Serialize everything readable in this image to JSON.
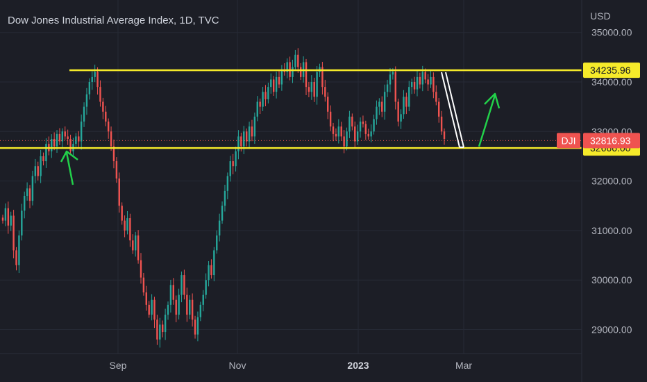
{
  "chart_data": {
    "type": "candlestick",
    "title": "Dow Jones Industrial Average Index, 1D, TVC",
    "currency": "USD",
    "symbol": "DJI",
    "ylim": [
      28300,
      35400
    ],
    "y_ticks": [
      {
        "value": 35000,
        "label": "35000.00"
      },
      {
        "value": 34000,
        "label": "34000.00"
      },
      {
        "value": 33000,
        "label": "33000.00"
      },
      {
        "value": 32000,
        "label": "32000.00"
      },
      {
        "value": 31000,
        "label": "31000.00"
      },
      {
        "value": 30000,
        "label": "30000.00"
      },
      {
        "value": 29000,
        "label": "29000.00"
      }
    ],
    "x_labels": [
      {
        "label": "Sep",
        "bold": false
      },
      {
        "label": "Nov",
        "bold": false
      },
      {
        "label": "2023",
        "bold": true
      },
      {
        "label": "Mar",
        "bold": false
      }
    ],
    "levels": [
      {
        "label": "34235.96",
        "value": 34235.96,
        "color": "#f5ea2a",
        "text_color": "#131722"
      },
      {
        "label": "32666.00",
        "value": 32666.0,
        "color": "#f5ea2a",
        "text_color": "#131722"
      }
    ],
    "current_price": {
      "symbol": "DJI",
      "label": "32816.93",
      "value": 32816.93,
      "color": "#ef5350"
    },
    "candles_close": [
      31200,
      31450,
      31100,
      31300,
      30600,
      30300,
      30900,
      31400,
      31700,
      31850,
      31600,
      32100,
      32300,
      32100,
      32500,
      32400,
      32750,
      32600,
      32850,
      32700,
      32950,
      32800,
      33000,
      32900,
      32850,
      32600,
      32750,
      32900,
      32800,
      33200,
      33500,
      33750,
      34000,
      34100,
      34200,
      33900,
      33600,
      33400,
      33200,
      33000,
      32700,
      32400,
      32050,
      31500,
      31200,
      31000,
      31250,
      30800,
      30600,
      30900,
      30400,
      30050,
      29750,
      29500,
      29300,
      29600,
      29200,
      28800,
      29100,
      28950,
      29300,
      29500,
      29900,
      29600,
      29300,
      29700,
      30100,
      29700,
      29300,
      29600,
      29200,
      28900,
      29250,
      29500,
      29700,
      30000,
      30300,
      30100,
      30600,
      30900,
      31200,
      31500,
      31800,
      32100,
      32400,
      32300,
      32600,
      32900,
      32700,
      33000,
      32800,
      33100,
      32900,
      33300,
      33600,
      33500,
      33800,
      33650,
      33900,
      34050,
      33800,
      34100,
      33950,
      34250,
      34200,
      34400,
      34100,
      34300,
      34550,
      34300,
      34100,
      34400,
      33900,
      33800,
      34000,
      33700,
      34200,
      34300,
      33900,
      33700,
      33400,
      33100,
      32950,
      32900,
      33100,
      32900,
      32700,
      33000,
      33300,
      33100,
      32800,
      33000,
      33200,
      33150,
      32950,
      32900,
      33000,
      33250,
      33500,
      33600,
      33400,
      33800,
      33950,
      34150,
      34200,
      33600,
      33200,
      33350,
      33700,
      33500,
      33900,
      34000,
      33850,
      34100,
      33950,
      34200,
      34050,
      33950,
      34100,
      33800,
      33600,
      33300,
      33000,
      32850
    ],
    "annotations": {
      "green_arrows": 2,
      "white_channel": 1,
      "dotted_price_line": true
    }
  }
}
